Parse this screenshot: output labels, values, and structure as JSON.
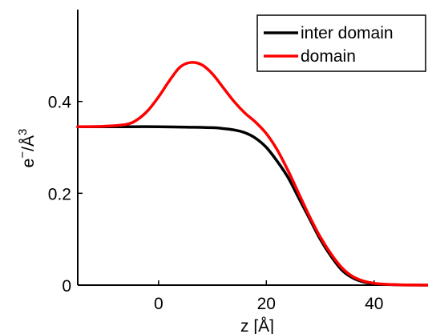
{
  "chart_data": {
    "type": "line",
    "title": "",
    "xlabel": "z [Å]",
    "ylabel": "e⁻/Å³",
    "ylabel_parts": {
      "base": "e",
      "sup1": "−",
      "mid": "/Å",
      "sup2": "3"
    },
    "xlim": [
      -15,
      50
    ],
    "ylim": [
      0,
      0.6
    ],
    "x_ticks": [
      0,
      20,
      40
    ],
    "y_ticks": [
      0,
      0.2,
      0.4
    ],
    "x_tick_labels": [
      "0",
      "20",
      "40"
    ],
    "y_tick_labels": [
      "0",
      "0.2",
      "0.4"
    ],
    "grid": false,
    "legend_position": "top-right",
    "series": [
      {
        "name": "inter domain",
        "color": "#000000",
        "x": [
          -15,
          -10,
          -5,
          0,
          5,
          10,
          12,
          14,
          16,
          18,
          20,
          22,
          24,
          26,
          28,
          30,
          32,
          34,
          36,
          38,
          40,
          42,
          44,
          46,
          50
        ],
        "y": [
          0.345,
          0.345,
          0.345,
          0.345,
          0.344,
          0.343,
          0.341,
          0.338,
          0.332,
          0.32,
          0.3,
          0.27,
          0.235,
          0.19,
          0.145,
          0.1,
          0.063,
          0.033,
          0.016,
          0.007,
          0.003,
          0.0015,
          0.0008,
          0.0003,
          0.0
        ]
      },
      {
        "name": "domain",
        "color": "#ff0000",
        "x": [
          -15,
          -10,
          -6,
          -4,
          -2,
          0,
          2,
          4,
          6,
          8,
          10,
          12,
          14,
          16,
          18,
          20,
          22,
          24,
          26,
          28,
          30,
          32,
          34,
          36,
          38,
          40,
          42,
          44,
          46,
          50
        ],
        "y": [
          0.345,
          0.346,
          0.35,
          0.36,
          0.38,
          0.41,
          0.445,
          0.475,
          0.485,
          0.48,
          0.46,
          0.43,
          0.4,
          0.375,
          0.355,
          0.33,
          0.295,
          0.25,
          0.2,
          0.15,
          0.105,
          0.068,
          0.038,
          0.019,
          0.009,
          0.004,
          0.002,
          0.001,
          0.0004,
          0.0
        ]
      }
    ]
  }
}
